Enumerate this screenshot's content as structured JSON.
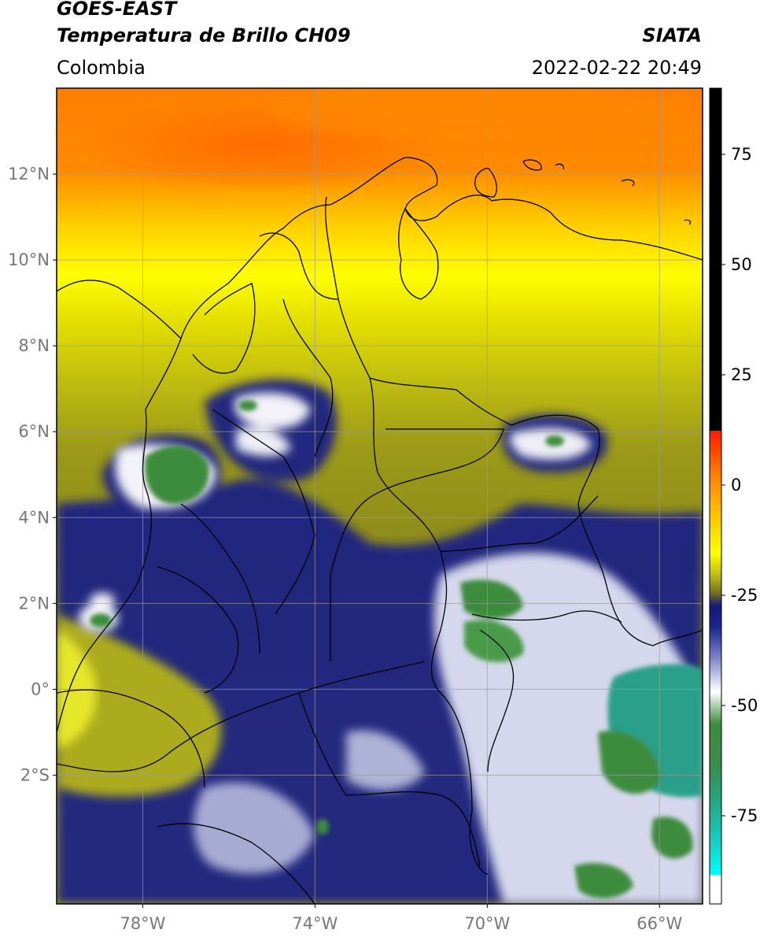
{
  "header": {
    "title_line1": "GOES-EAST",
    "title_line2": "Temperatura de Brillo CH09",
    "source": "SIATA",
    "region": "Colombia",
    "timestamp": "2022-02-22 20:49"
  },
  "map": {
    "lon_range": [
      -80,
      -65
    ],
    "lat_range": [
      -5,
      14
    ],
    "lon_ticks": [
      {
        "value": -78,
        "label": "78°W"
      },
      {
        "value": -74,
        "label": "74°W"
      },
      {
        "value": -70,
        "label": "70°W"
      },
      {
        "value": -66,
        "label": "66°W"
      }
    ],
    "lat_ticks": [
      {
        "value": 12,
        "label": "12°N"
      },
      {
        "value": 10,
        "label": "10°N"
      },
      {
        "value": 8,
        "label": "8°N"
      },
      {
        "value": 6,
        "label": "6°N"
      },
      {
        "value": 4,
        "label": "4°N"
      },
      {
        "value": 2,
        "label": "2°N"
      },
      {
        "value": 0,
        "label": "0°"
      },
      {
        "value": -2,
        "label": "2°S"
      }
    ],
    "colors": {
      "warm": "#ff7a00",
      "mid": "#ffff00",
      "olive": "#8a8a1c",
      "cold_navy": "#141a7a",
      "white": "#ffffff",
      "green": "#3c8c3c",
      "teal": "#20c0a0",
      "grid": "#9a9a9a",
      "border": "#000000"
    }
  },
  "colorbar": {
    "range": [
      -95,
      90
    ],
    "ticks": [
      {
        "value": 75,
        "label": "75"
      },
      {
        "value": 50,
        "label": "50"
      },
      {
        "value": 25,
        "label": "25"
      },
      {
        "value": 0,
        "label": "0"
      },
      {
        "value": -25,
        "label": "-25"
      },
      {
        "value": -50,
        "label": "-50"
      },
      {
        "value": -75,
        "label": "-75"
      }
    ]
  }
}
